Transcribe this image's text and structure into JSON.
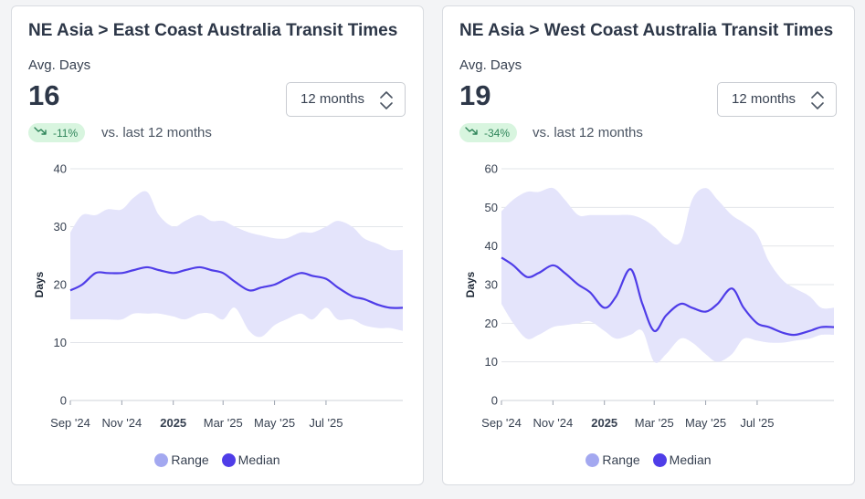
{
  "colors": {
    "range_fill": "#e4e4fb",
    "median_line": "#4f3de8",
    "legend_range": "#a3a8f0",
    "legend_median": "#4f3de8",
    "badge_bg": "#d8f5df",
    "badge_text": "#2f855a",
    "grid": "#e2e5ea"
  },
  "cards": [
    {
      "title": "NE Asia > East Coast Australia Transit Times",
      "metric_label": "Avg. Days",
      "metric_value": "16",
      "select_value": "12 months",
      "change_pct": "-11%",
      "change_icon": "trend-down-icon",
      "change_suffix": "vs. last 12 months",
      "legend": {
        "range": "Range",
        "median": "Median"
      }
    },
    {
      "title": "NE Asia > West Coast Australia Transit Times",
      "metric_label": "Avg. Days",
      "metric_value": "19",
      "select_value": "12 months",
      "change_pct": "-34%",
      "change_icon": "trend-down-icon",
      "change_suffix": "vs. last 12 months",
      "legend": {
        "range": "Range",
        "median": "Median"
      }
    }
  ],
  "chart_data": [
    {
      "type": "area",
      "ylabel": "Days",
      "ylim": [
        0,
        40
      ],
      "yticks": [
        0,
        10,
        20,
        30,
        40
      ],
      "xlim": [
        "2024-09-01",
        "2025-09-30"
      ],
      "xticks": [
        {
          "label": "Sep '24",
          "date": "2024-09-01",
          "bold": false
        },
        {
          "label": "Nov '24",
          "date": "2024-11-01",
          "bold": false
        },
        {
          "label": "2025",
          "date": "2025-01-01",
          "bold": true
        },
        {
          "label": "Mar '25",
          "date": "2025-03-01",
          "bold": false
        },
        {
          "label": "May '25",
          "date": "2025-05-01",
          "bold": false
        },
        {
          "label": "Jul '25",
          "date": "2025-07-01",
          "bold": false
        }
      ],
      "grid": true,
      "legend_position": "bottom",
      "series": [
        {
          "name": "Range",
          "kind": "band",
          "x": [
            "2024-09-01",
            "2024-09-15",
            "2024-10-01",
            "2024-10-15",
            "2024-11-01",
            "2024-11-15",
            "2024-12-01",
            "2024-12-15",
            "2025-01-01",
            "2025-01-15",
            "2025-02-01",
            "2025-02-15",
            "2025-03-01",
            "2025-03-15",
            "2025-04-01",
            "2025-04-15",
            "2025-05-01",
            "2025-05-15",
            "2025-06-01",
            "2025-06-15",
            "2025-07-01",
            "2025-07-15",
            "2025-08-01",
            "2025-08-15",
            "2025-09-01",
            "2025-09-15",
            "2025-09-30"
          ],
          "low": [
            14,
            14,
            14,
            14,
            14,
            15,
            15,
            15,
            14.5,
            14,
            15,
            15,
            14,
            16,
            12,
            11,
            13,
            14,
            15,
            14,
            16,
            14,
            14,
            13,
            12.5,
            12.5,
            12
          ],
          "high": [
            29,
            32,
            32,
            33,
            33,
            35,
            36,
            32,
            30,
            31,
            32,
            31,
            31,
            30,
            29,
            28.5,
            28,
            28,
            29,
            29,
            30,
            31,
            30,
            28,
            27,
            26,
            26
          ]
        },
        {
          "name": "Median",
          "kind": "line",
          "x": [
            "2024-09-01",
            "2024-09-15",
            "2024-10-01",
            "2024-10-15",
            "2024-11-01",
            "2024-11-15",
            "2024-12-01",
            "2024-12-15",
            "2025-01-01",
            "2025-01-15",
            "2025-02-01",
            "2025-02-15",
            "2025-03-01",
            "2025-03-15",
            "2025-04-01",
            "2025-04-15",
            "2025-05-01",
            "2025-05-15",
            "2025-06-01",
            "2025-06-15",
            "2025-07-01",
            "2025-07-15",
            "2025-08-01",
            "2025-08-15",
            "2025-09-01",
            "2025-09-15",
            "2025-09-30"
          ],
          "values": [
            19,
            20,
            22,
            22,
            22,
            22.5,
            23,
            22.5,
            22,
            22.5,
            23,
            22.5,
            22,
            20.5,
            19,
            19.5,
            20,
            21,
            22,
            21.5,
            21,
            19.5,
            18,
            17.5,
            16.5,
            16,
            16
          ]
        }
      ]
    },
    {
      "type": "area",
      "ylabel": "Days",
      "ylim": [
        0,
        60
      ],
      "yticks": [
        0,
        10,
        20,
        30,
        40,
        50,
        60
      ],
      "xlim": [
        "2024-09-01",
        "2025-09-30"
      ],
      "xticks": [
        {
          "label": "Sep '24",
          "date": "2024-09-01",
          "bold": false
        },
        {
          "label": "Nov '24",
          "date": "2024-11-01",
          "bold": false
        },
        {
          "label": "2025",
          "date": "2025-01-01",
          "bold": true
        },
        {
          "label": "Mar '25",
          "date": "2025-03-01",
          "bold": false
        },
        {
          "label": "May '25",
          "date": "2025-05-01",
          "bold": false
        },
        {
          "label": "Jul '25",
          "date": "2025-07-01",
          "bold": false
        }
      ],
      "grid": true,
      "legend_position": "bottom",
      "series": [
        {
          "name": "Range",
          "kind": "band",
          "x": [
            "2024-09-01",
            "2024-09-15",
            "2024-10-01",
            "2024-10-15",
            "2024-11-01",
            "2024-11-15",
            "2024-12-01",
            "2024-12-15",
            "2025-01-01",
            "2025-01-15",
            "2025-02-01",
            "2025-02-15",
            "2025-03-01",
            "2025-03-15",
            "2025-04-01",
            "2025-04-15",
            "2025-05-01",
            "2025-05-15",
            "2025-06-01",
            "2025-06-15",
            "2025-07-01",
            "2025-07-15",
            "2025-08-01",
            "2025-08-15",
            "2025-09-01",
            "2025-09-15",
            "2025-09-30"
          ],
          "low": [
            25,
            20,
            16,
            17,
            19,
            19.5,
            20,
            20.5,
            18,
            16,
            17,
            18,
            10,
            12,
            16,
            15,
            12,
            10,
            12,
            16,
            15.5,
            15,
            15,
            15.5,
            16,
            17,
            17
          ],
          "high": [
            49,
            52,
            54,
            54,
            55,
            52,
            48,
            48,
            48,
            48,
            48,
            47,
            45,
            42,
            41,
            52,
            55,
            52,
            48,
            46,
            43,
            36,
            31,
            29,
            27,
            24,
            24
          ]
        },
        {
          "name": "Median",
          "kind": "line",
          "x": [
            "2024-09-01",
            "2024-09-15",
            "2024-10-01",
            "2024-10-15",
            "2024-11-01",
            "2024-11-15",
            "2024-12-01",
            "2024-12-15",
            "2025-01-01",
            "2025-01-15",
            "2025-02-01",
            "2025-02-15",
            "2025-03-01",
            "2025-03-15",
            "2025-04-01",
            "2025-04-15",
            "2025-05-01",
            "2025-05-15",
            "2025-06-01",
            "2025-06-15",
            "2025-07-01",
            "2025-07-15",
            "2025-08-01",
            "2025-08-15",
            "2025-09-01",
            "2025-09-15",
            "2025-09-30"
          ],
          "values": [
            37,
            35,
            32,
            33,
            35,
            33,
            30,
            28,
            24,
            27,
            34,
            25,
            18,
            22,
            25,
            24,
            23,
            25,
            29,
            24,
            20,
            19,
            17.5,
            17,
            18,
            19,
            19
          ]
        }
      ]
    }
  ]
}
